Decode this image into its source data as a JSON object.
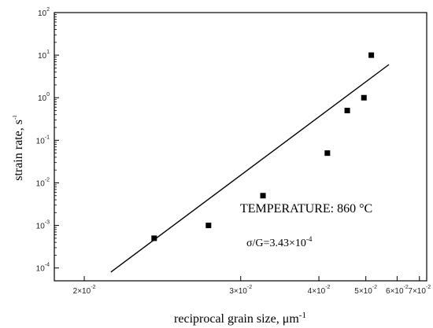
{
  "chart_data": {
    "type": "scatter",
    "x_scale": "reciprocal",
    "y_scale": "log",
    "xlabel": "reciprocal grain size, μm",
    "xlabel_sup": "-1",
    "ylabel": "strain rate, s",
    "ylabel_sup": "-1",
    "xlim": [
      0.0188,
      0.074
    ],
    "ylim": [
      5e-05,
      100
    ],
    "x_ticks": [
      {
        "value": 0.02,
        "mantissa": "2×10",
        "exp": "-2"
      },
      {
        "value": 0.03,
        "mantissa": "3×10",
        "exp": "-2"
      },
      {
        "value": 0.04,
        "mantissa": "4×10",
        "exp": "-2"
      },
      {
        "value": 0.05,
        "mantissa": "5×10",
        "exp": "-2"
      },
      {
        "value": 0.06,
        "mantissa": "6×10",
        "exp": "-2"
      },
      {
        "value": 0.07,
        "mantissa": "7×10",
        "exp": "-2"
      }
    ],
    "y_ticks": [
      {
        "value": 0.0001,
        "base": "10",
        "exp": "-4"
      },
      {
        "value": 0.001,
        "base": "10",
        "exp": "-3"
      },
      {
        "value": 0.01,
        "base": "10",
        "exp": "-2"
      },
      {
        "value": 0.1,
        "base": "10",
        "exp": "-1"
      },
      {
        "value": 1,
        "base": "10",
        "exp": "0"
      },
      {
        "value": 10,
        "base": "10",
        "exp": "1"
      },
      {
        "value": 100,
        "base": "10",
        "exp": "2"
      }
    ],
    "points": [
      {
        "x": 0.0235,
        "y": 0.0005
      },
      {
        "x": 0.0272,
        "y": 0.001
      },
      {
        "x": 0.0323,
        "y": 0.005
      },
      {
        "x": 0.0415,
        "y": 0.05
      },
      {
        "x": 0.0455,
        "y": 0.5
      },
      {
        "x": 0.0495,
        "y": 1
      },
      {
        "x": 0.0515,
        "y": 10
      }
    ],
    "fit_line": [
      {
        "x": 0.0212,
        "y": 8e-05
      },
      {
        "x": 0.057,
        "y": 6
      }
    ],
    "grid": false,
    "legend": "none",
    "colors": {
      "marker": "#000000",
      "line": "#000000",
      "axis": "#000000"
    }
  },
  "annotations": {
    "temperature_label": "TEMPERATURE: 860 °C",
    "stress_label": "σ/G=3.43×10",
    "stress_exp": "-4"
  }
}
